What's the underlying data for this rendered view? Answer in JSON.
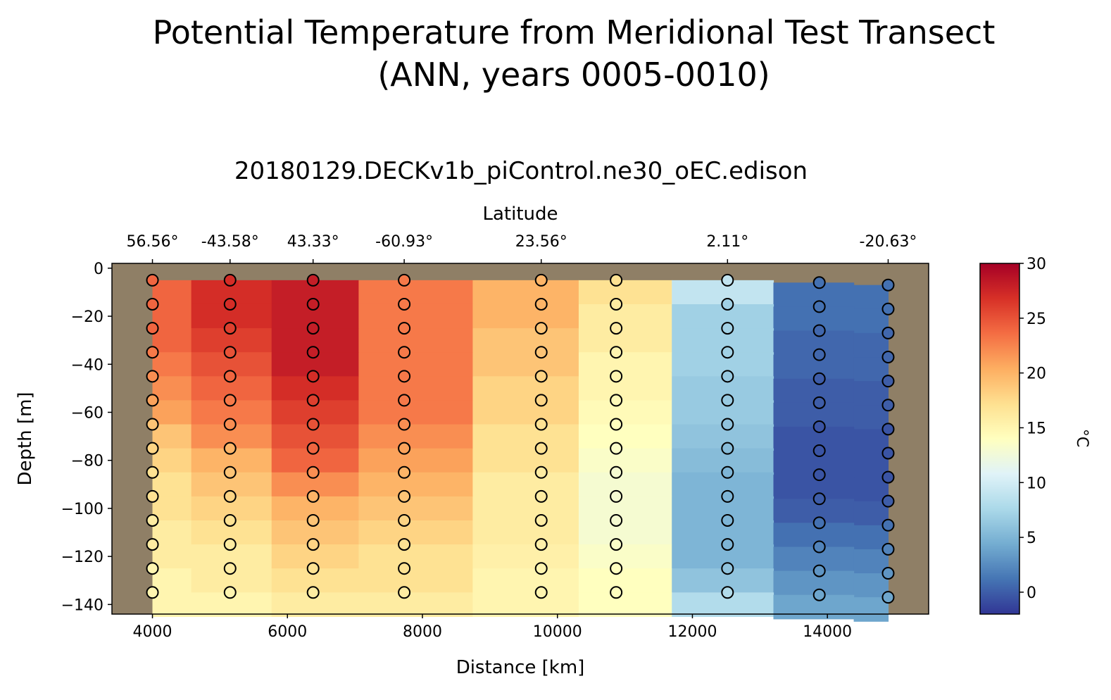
{
  "chart_data": {
    "type": "heatmap",
    "suptitle_line1": "Potential Temperature from Meridional Test Transect",
    "suptitle_line2": "(ANN, years 0005-0010)",
    "title": "20180129.DECKv1b_piControl.ne30_oEC.edison",
    "xlabel": "Distance [km]",
    "ylabel": "Depth [m]",
    "top_xlabel": "Latitude",
    "xlim": [
      3400,
      15500
    ],
    "ylim": [
      -144,
      2
    ],
    "x_ticks": [
      4000,
      6000,
      8000,
      10000,
      12000,
      14000
    ],
    "x_tick_labels": [
      "4000",
      "6000",
      "8000",
      "10000",
      "12000",
      "14000"
    ],
    "y_ticks": [
      0,
      -20,
      -40,
      -60,
      -80,
      -100,
      -120,
      -140
    ],
    "y_tick_labels": [
      "0",
      "−20",
      "−40",
      "−60",
      "−80",
      "−100",
      "−120",
      "−140"
    ],
    "top_ticks": [
      4000,
      5150,
      6380,
      7730,
      9760,
      12520,
      14900
    ],
    "top_tick_labels": [
      "56.56°",
      "-43.58°",
      "43.33°",
      "-60.93°",
      "23.56°",
      "2.11°",
      "-20.63°"
    ],
    "colorbar": {
      "label": "°C",
      "vmin": -2,
      "vmax": 30,
      "ticks": [
        0,
        5,
        10,
        15,
        20,
        25,
        30
      ],
      "tick_labels": [
        "0",
        "5",
        "10",
        "15",
        "20",
        "25",
        "30"
      ]
    },
    "missing_color": "#8f7f66",
    "station_distances": [
      4000,
      5150,
      6380,
      7730,
      9760,
      10870,
      12520,
      13880,
      14900
    ],
    "depths": [
      -5,
      -15,
      -25,
      -35,
      -45,
      -55,
      -65,
      -75,
      -85,
      -95,
      -105,
      -115,
      -125,
      -135
    ],
    "station_depths": [
      [
        -5,
        -15,
        -25,
        -35,
        -45,
        -55,
        -65,
        -75,
        -85,
        -95,
        -105,
        -115,
        -125,
        -135
      ],
      [
        -5,
        -15,
        -25,
        -35,
        -45,
        -55,
        -65,
        -75,
        -85,
        -95,
        -105,
        -115,
        -125,
        -135
      ],
      [
        -5,
        -15,
        -25,
        -35,
        -45,
        -55,
        -65,
        -75,
        -85,
        -95,
        -105,
        -115,
        -125,
        -135
      ],
      [
        -5,
        -15,
        -25,
        -35,
        -45,
        -55,
        -65,
        -75,
        -85,
        -95,
        -105,
        -115,
        -125,
        -135
      ],
      [
        -5,
        -15,
        -25,
        -35,
        -45,
        -55,
        -65,
        -75,
        -85,
        -95,
        -105,
        -115,
        -125,
        -135
      ],
      [
        -5,
        -15,
        -25,
        -35,
        -45,
        -55,
        -65,
        -75,
        -85,
        -95,
        -105,
        -115,
        -125,
        -135
      ],
      [
        -5,
        -15,
        -25,
        -35,
        -45,
        -55,
        -65,
        -75,
        -85,
        -95,
        -105,
        -115,
        -125,
        -135
      ],
      [
        -6,
        -16,
        -26,
        -36,
        -46,
        -56,
        -66,
        -76,
        -86,
        -96,
        -106,
        -116,
        -126,
        -136
      ],
      [
        -7,
        -17,
        -27,
        -37,
        -47,
        -57,
        -67,
        -77,
        -87,
        -97,
        -107,
        -117,
        -127,
        -137
      ]
    ],
    "temperature_rows": [
      [
        24,
        27,
        28,
        23,
        20,
        17,
        9,
        1,
        1
      ],
      [
        24,
        27,
        28,
        23,
        20,
        16,
        7,
        1,
        1
      ],
      [
        24,
        26,
        28,
        23,
        19,
        16,
        7,
        0.5,
        0.5
      ],
      [
        23,
        25,
        28,
        23,
        19,
        15,
        7,
        0.5,
        0.5
      ],
      [
        22,
        24,
        27,
        23,
        18,
        15,
        6.5,
        0,
        0
      ],
      [
        21,
        23,
        26,
        23,
        18,
        14.5,
        6.5,
        0,
        0
      ],
      [
        19,
        22,
        25,
        22,
        17,
        14,
        6,
        -0.5,
        -0.5
      ],
      [
        18,
        20,
        24,
        21,
        17,
        13.5,
        5.5,
        -0.5,
        -0.5
      ],
      [
        17,
        19,
        22,
        20,
        16,
        13,
        5,
        -0.5,
        -0.5
      ],
      [
        17,
        18,
        20,
        19,
        16,
        13,
        5,
        0,
        0
      ],
      [
        16,
        17,
        19,
        18,
        16,
        13,
        5,
        1,
        1
      ],
      [
        16,
        16,
        18,
        17,
        15.5,
        13.5,
        5,
        2,
        2
      ],
      [
        15,
        16,
        17,
        17,
        15,
        14,
        6,
        3,
        3
      ],
      [
        15,
        15,
        16,
        16,
        15,
        14,
        8,
        4,
        4
      ]
    ]
  }
}
